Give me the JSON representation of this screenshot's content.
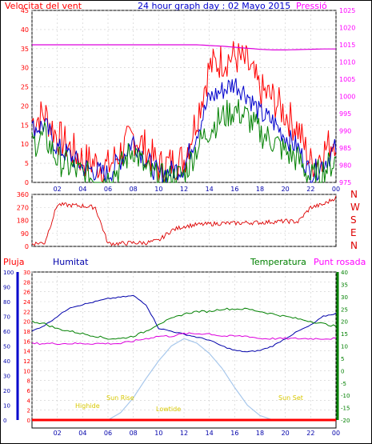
{
  "header": {
    "left_label": "Velocitat del vent",
    "title": "24 hour graph day : 02 Mayo 2015",
    "right_label": "Pressió"
  },
  "x_ticks": [
    "02",
    "04",
    "06",
    "08",
    "10",
    "12",
    "14",
    "16",
    "18",
    "20",
    "22",
    "00"
  ],
  "colors": {
    "wind_avg": "#0000cc",
    "wind_gust": "#ff0000",
    "wind_low": "#008000",
    "pressure": "#dd00dd",
    "direction": "#dd0000",
    "humidity": "#0000aa",
    "temperature": "#008000",
    "dewpoint": "#dd00dd",
    "solar": "#a8c8ec",
    "rain": "#ff0000",
    "annotation": "#d8c800"
  },
  "chart_data": [
    {
      "type": "line",
      "name": "wind_pressure",
      "x": [
        0,
        1,
        2,
        3,
        4,
        5,
        6,
        7,
        8,
        9,
        10,
        11,
        12,
        13,
        14,
        15,
        16,
        17,
        18,
        19,
        20,
        21,
        22,
        23,
        24
      ],
      "series": [
        {
          "name": "gust",
          "values": [
            16,
            18,
            12,
            9,
            6,
            5,
            4,
            8,
            12,
            9,
            4,
            5,
            6,
            17,
            30,
            32,
            33,
            31,
            24,
            22,
            18,
            14,
            5,
            8,
            12
          ]
        },
        {
          "name": "average",
          "values": [
            14,
            15,
            9,
            7,
            4,
            3,
            2,
            6,
            11,
            6,
            2,
            3,
            4,
            13,
            22,
            24,
            26,
            23,
            18,
            16,
            12,
            9,
            2,
            5,
            9
          ]
        },
        {
          "name": "low",
          "values": [
            10,
            12,
            6,
            4,
            2,
            1,
            1,
            4,
            9,
            3,
            1,
            1,
            2,
            9,
            14,
            17,
            19,
            17,
            13,
            11,
            8,
            6,
            1,
            3,
            6
          ]
        },
        {
          "name": "pressure",
          "values": [
            1015,
            1015,
            1015,
            1015,
            1015,
            1015,
            1015,
            1015,
            1015,
            1015,
            1015,
            1015,
            1015,
            1015,
            1014.8,
            1014.6,
            1014.3,
            1014,
            1013.7,
            1013.5,
            1013.5,
            1013.6,
            1013.7,
            1013.8,
            1013.8
          ]
        }
      ],
      "left_axis": {
        "ticks": [
          "0",
          "5",
          "10",
          "15",
          "20",
          "25",
          "30",
          "35",
          "40",
          "45"
        ],
        "range": [
          0,
          45
        ]
      },
      "right_axis": {
        "ticks": [
          "975",
          "980",
          "985",
          "990",
          "995",
          "1000",
          "1005",
          "1010",
          "1015",
          "1020",
          "1025"
        ],
        "range": [
          975,
          1025
        ]
      }
    },
    {
      "type": "line",
      "name": "wind_direction",
      "x": [
        0,
        1,
        2,
        3,
        4,
        5,
        6,
        7,
        8,
        9,
        10,
        11,
        12,
        13,
        14,
        15,
        16,
        17,
        18,
        19,
        20,
        21,
        22,
        23,
        24
      ],
      "series": [
        {
          "name": "direction",
          "values": [
            20,
            25,
            290,
            285,
            280,
            270,
            20,
            20,
            25,
            25,
            40,
            110,
            140,
            150,
            155,
            160,
            160,
            165,
            165,
            170,
            175,
            170,
            270,
            290,
            340
          ]
        }
      ],
      "left_axis": {
        "ticks": [
          "0",
          "90",
          "180",
          "270",
          "360"
        ],
        "range": [
          0,
          360
        ]
      },
      "right_axis": {
        "ticks": [
          "N",
          "W",
          "S",
          "E",
          "N"
        ]
      }
    },
    {
      "type": "line",
      "name": "temp_humidity",
      "x": [
        0,
        1,
        2,
        3,
        4,
        5,
        6,
        7,
        8,
        9,
        10,
        11,
        12,
        13,
        14,
        15,
        16,
        17,
        18,
        19,
        20,
        21,
        22,
        23,
        24
      ],
      "header": {
        "rain": "Pluja",
        "humidity": "Humitat",
        "temperature": "Temperatura",
        "dewpoint": "Punt rosada"
      },
      "series": [
        {
          "name": "humidity",
          "values": [
            60,
            64,
            70,
            76,
            78,
            80,
            82,
            83,
            84,
            78,
            62,
            60,
            58,
            56,
            54,
            50,
            47,
            46,
            47,
            50,
            55,
            60,
            64,
            70,
            72
          ]
        },
        {
          "name": "temperature",
          "values": [
            20,
            19,
            17,
            16,
            15,
            14,
            13,
            13,
            14,
            16,
            19,
            21,
            23,
            24,
            24,
            25,
            25,
            25,
            24,
            23,
            22,
            21,
            20,
            19,
            18
          ]
        },
        {
          "name": "dewpoint",
          "values": [
            11,
            11,
            11,
            11,
            11,
            11,
            11,
            11,
            12,
            13,
            14,
            14,
            15,
            15,
            15,
            14,
            14,
            14,
            13,
            13,
            13,
            13,
            13,
            13,
            13
          ]
        },
        {
          "name": "solar",
          "values": [
            0,
            0,
            0,
            0,
            0,
            0,
            0,
            5,
            15,
            28,
            40,
            50,
            55,
            52,
            45,
            35,
            22,
            10,
            3,
            0,
            0,
            0,
            0,
            0,
            0
          ]
        }
      ],
      "humidity_axis": {
        "ticks": [
          "0",
          "10",
          "20",
          "30",
          "40",
          "50",
          "60",
          "70",
          "80",
          "90",
          "100"
        ],
        "range": [
          0,
          100
        ]
      },
      "rain_axis": {
        "ticks": [
          "0",
          "2",
          "4",
          "6",
          "8",
          "10",
          "12",
          "14",
          "16",
          "18",
          "20",
          "22",
          "24",
          "26",
          "28",
          "30"
        ],
        "range": [
          0,
          30
        ]
      },
      "temp_axis": {
        "ticks": [
          "-20",
          "-15",
          "-10",
          "-5",
          "0",
          "5",
          "10",
          "15",
          "20",
          "25",
          "30",
          "35",
          "40"
        ],
        "range": [
          -20,
          40
        ]
      },
      "annotations": {
        "highest": "Highide",
        "sunrise": "Sun Rise",
        "lowest": "Lowtide",
        "sunset": "Sun Set"
      }
    }
  ]
}
